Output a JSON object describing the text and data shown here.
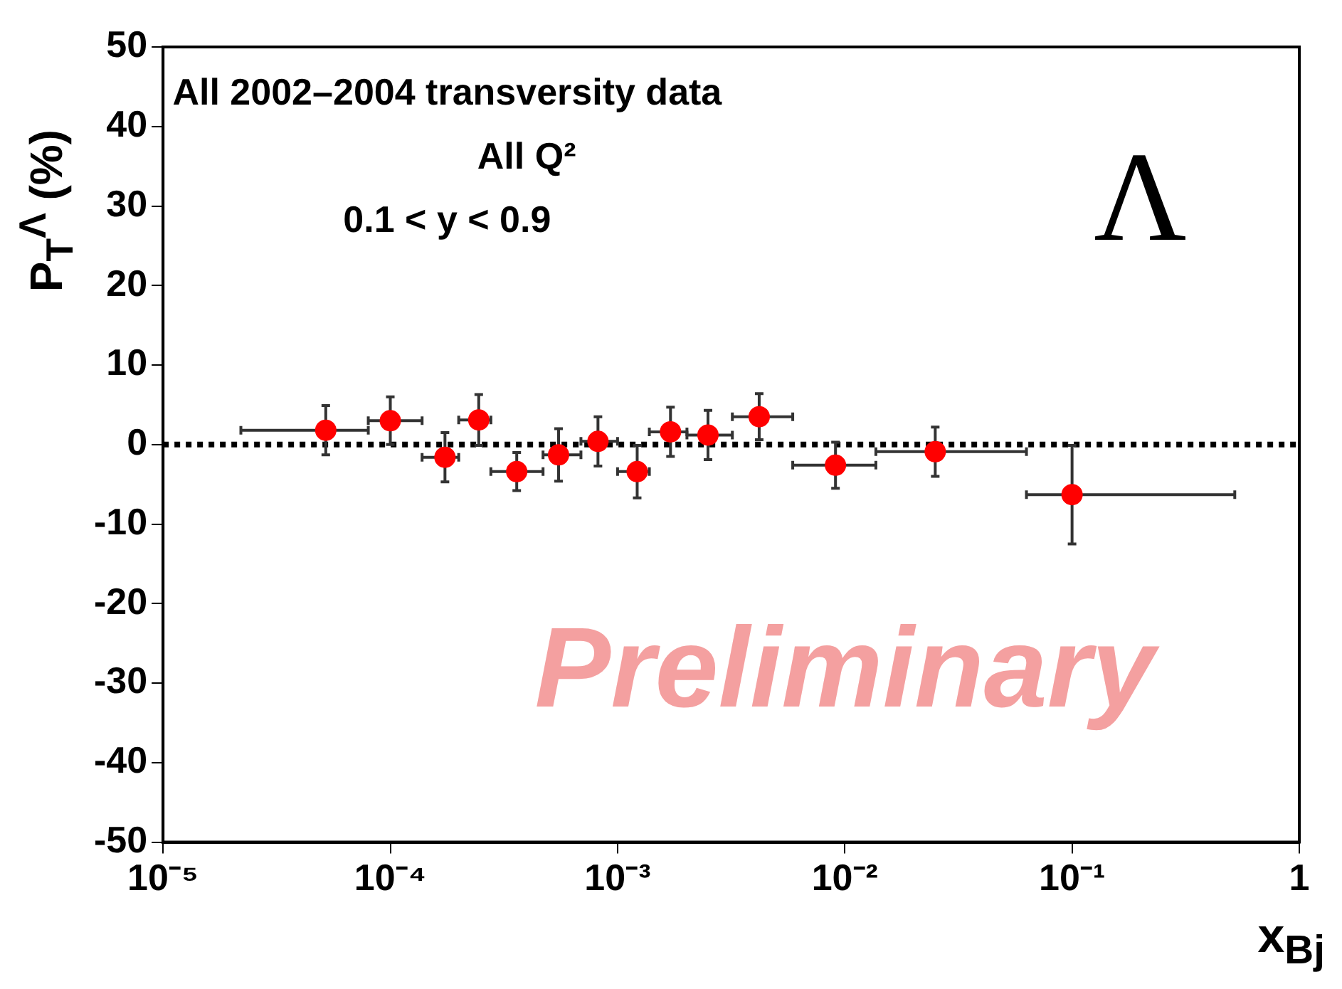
{
  "chart_data": {
    "type": "scatter",
    "xlabel": "x$_{Bj}$",
    "ylabel": "P$_{T}$$^{Λ}$ (%)",
    "annotations": [
      "All 2002–2004 transversity data",
      "All Q²",
      "0.1 < y < 0.9",
      "Λ",
      "Preliminary"
    ],
    "x": [
      5.2e-05,
      0.0001,
      0.000174,
      0.000245,
      0.00036,
      0.00055,
      0.00082,
      0.00122,
      0.00171,
      0.0025,
      0.0042,
      0.0091,
      0.025,
      0.1
    ],
    "series": [
      {
        "color": "#ff0000",
        "values": [
          1.8,
          3.0,
          -1.6,
          3.1,
          -3.4,
          -1.3,
          0.4,
          -3.4,
          1.6,
          1.2,
          3.5,
          -2.6,
          -0.9,
          -6.3
        ],
        "errors": [
          3.1,
          3.0,
          3.1,
          3.2,
          2.4,
          3.3,
          3.1,
          3.3,
          3.1,
          3.1,
          2.9,
          2.9,
          3.1,
          6.2
        ],
        "xerrors": [
          [
            2.2e-05,
            8e-05
          ],
          [
            8e-05,
            0.000138
          ],
          [
            0.000138,
            0.0002
          ],
          [
            0.0002,
            0.000277
          ],
          [
            0.000277,
            0.00047
          ],
          [
            0.00047,
            0.00069
          ],
          [
            0.00069,
            0.001
          ],
          [
            0.001,
            0.00138
          ],
          [
            0.00138,
            0.00202
          ],
          [
            0.00202,
            0.0032
          ],
          [
            0.0032,
            0.0059
          ],
          [
            0.0059,
            0.0137
          ],
          [
            0.0137,
            0.063
          ],
          [
            0.063,
            0.52
          ]
        ]
      }
    ],
    "log": "x",
    "xlim": [
      1e-05,
      1
    ],
    "xticks": [
      {
        "value": 1e-05,
        "label": "10⁻⁵"
      },
      {
        "value": 0.0001,
        "label": "10⁻⁴"
      },
      {
        "value": 0.001,
        "label": "10⁻³"
      },
      {
        "value": 0.01,
        "label": "10⁻²"
      },
      {
        "value": 0.1,
        "label": "10⁻¹"
      },
      1
    ],
    "ylim": [
      -50,
      50
    ],
    "yticks": [
      -50,
      -40,
      -30,
      -20,
      -10,
      0,
      10,
      20,
      30,
      40,
      50
    ],
    "ref_lines": [
      {
        "axis": "y",
        "value": 0,
        "color": "#000000",
        "line_style": "dotted"
      }
    ],
    "grid": false,
    "legend": false,
    "marker": "circle"
  }
}
